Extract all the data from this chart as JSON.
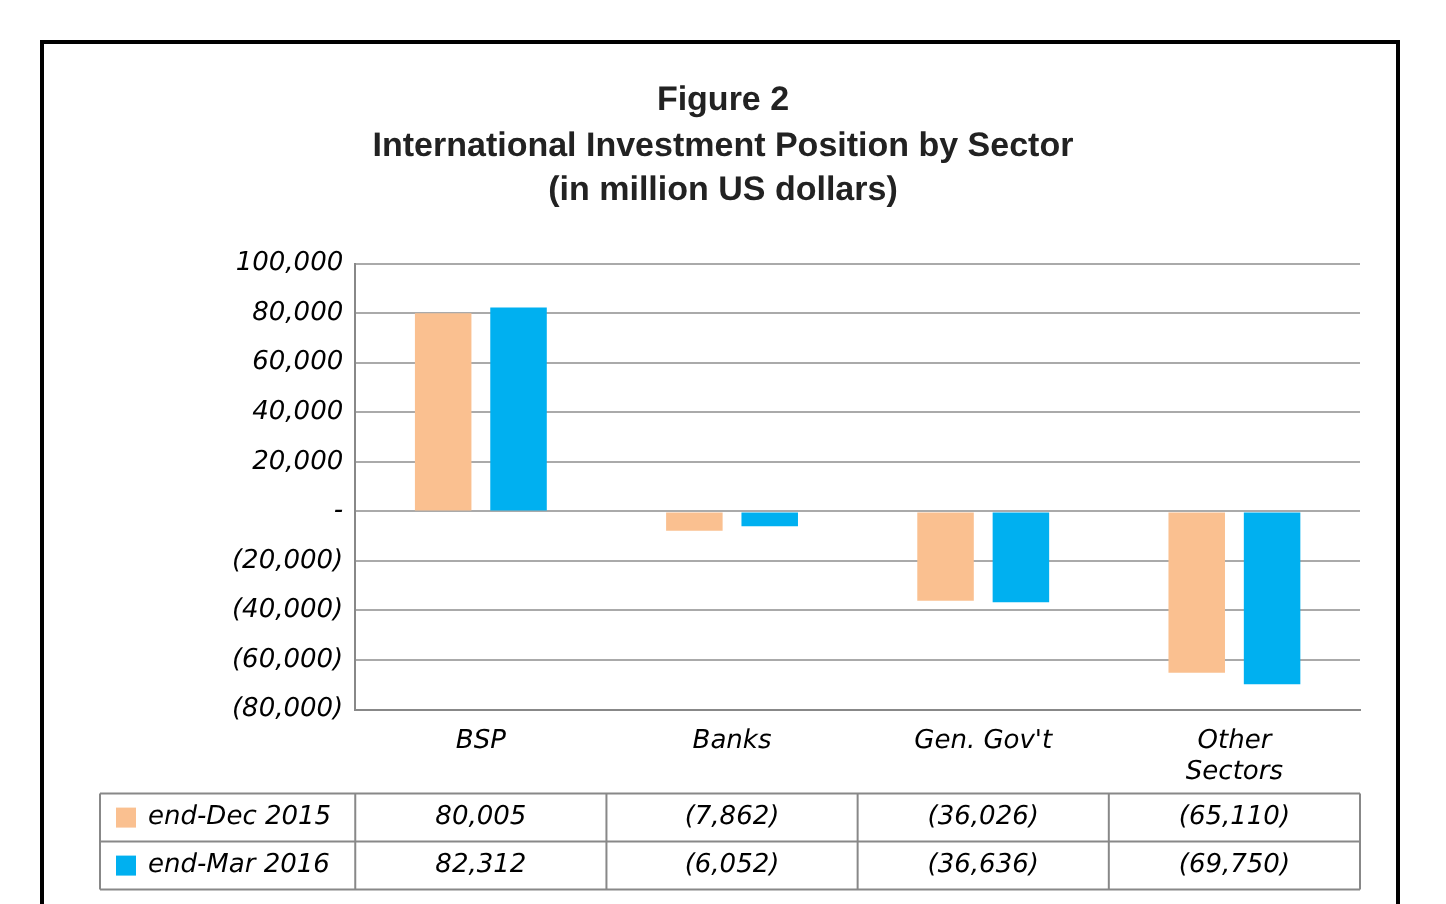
{
  "chart_data": {
    "type": "bar",
    "title": "Figure 2",
    "subtitle": "International Investment Position by Sector (in million US dollars)",
    "categories": [
      "BSP",
      "Banks",
      "Gen. Gov't",
      "Other Sectors"
    ],
    "series": [
      {
        "name": "end-Dec 2015",
        "color": "#fac090",
        "values": [
          80005,
          -7862,
          -36026,
          -65110
        ],
        "value_labels": [
          "80,005",
          "(7,862)",
          "(36,026)",
          "(65,110)"
        ]
      },
      {
        "name": "end-Mar 2016",
        "color": "#00b0f0",
        "values": [
          82312,
          -6052,
          -36636,
          -69750
        ],
        "value_labels": [
          "82,312",
          "(6,052)",
          "(36,636)",
          "(69,750)"
        ]
      }
    ],
    "ylim": [
      -80000,
      100000
    ],
    "yticks": [
      {
        "value": 100000,
        "label": "100,000"
      },
      {
        "value": 80000,
        "label": "80,000"
      },
      {
        "value": 60000,
        "label": "60,000"
      },
      {
        "value": 40000,
        "label": "40,000"
      },
      {
        "value": 20000,
        "label": "20,000"
      },
      {
        "value": 0,
        "label": "-"
      },
      {
        "value": -20000,
        "label": "(20,000)"
      },
      {
        "value": -40000,
        "label": "(40,000)"
      },
      {
        "value": -60000,
        "label": "(60,000)"
      },
      {
        "value": -80000,
        "label": "(80,000)"
      }
    ],
    "grid": "y",
    "legend": "bottom left"
  }
}
